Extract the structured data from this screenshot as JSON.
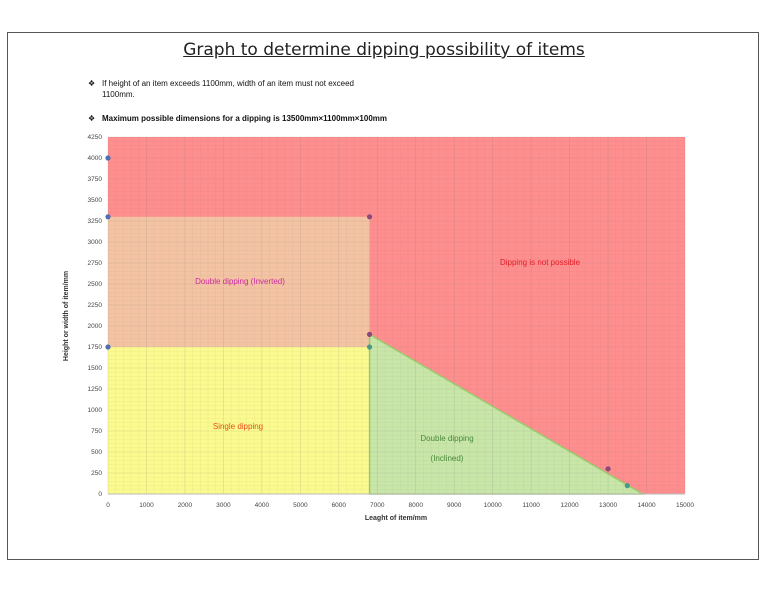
{
  "title": "Graph to determine dipping possibility of items",
  "notes": [
    {
      "bullet": "❖",
      "line1": "If height of an item exceeds 1100mm, width of an item must not exceed",
      "line2": "1100mm."
    },
    {
      "bullet": "❖",
      "line1": "Maximum possible dimensions for a dipping is 13500mm×1100mm×100mm",
      "line2": ""
    }
  ],
  "colors": {
    "not_possible": "#ff8e8e",
    "inverted": "#f4c3a3",
    "single": "#fbfa8e",
    "inclined": "#c8e6a8",
    "inclined_edge": "#9ccc6e",
    "point_blue": "#4f6fb3",
    "point_purple": "#8a4a7a",
    "point_teal": "#4a9a8a",
    "label_inverted": "#cc2ba0",
    "label_not_possible": "#e0202a",
    "label_single": "#e8501a",
    "label_inclined": "#4a8a3a"
  },
  "chart_data": {
    "type": "area",
    "title": "Graph to determine dipping possibility of items",
    "xlabel": "Leaght of item/mm",
    "ylabel": "Height or width of item/mm",
    "xlim": [
      0,
      15000
    ],
    "ylim": [
      0,
      4250
    ],
    "x_ticks": [
      0,
      1000,
      2000,
      3000,
      4000,
      5000,
      6000,
      7000,
      8000,
      9000,
      10000,
      11000,
      12000,
      13000,
      14000,
      15000
    ],
    "y_ticks": [
      0,
      250,
      500,
      750,
      1000,
      1250,
      1500,
      1750,
      2000,
      2250,
      2500,
      2750,
      3000,
      3250,
      3500,
      3750,
      4000,
      4250
    ],
    "grid": true,
    "regions": [
      {
        "name": "Dipping is not possible",
        "polygon": [
          [
            0,
            0
          ],
          [
            15000,
            0
          ],
          [
            15000,
            4250
          ],
          [
            0,
            4250
          ]
        ]
      },
      {
        "name": "Double dipping (Inverted)",
        "polygon": [
          [
            0,
            1750
          ],
          [
            6800,
            1750
          ],
          [
            6800,
            3300
          ],
          [
            0,
            3300
          ]
        ]
      },
      {
        "name": "Single dipping",
        "polygon": [
          [
            0,
            0
          ],
          [
            6800,
            0
          ],
          [
            6800,
            1750
          ],
          [
            0,
            1750
          ]
        ]
      },
      {
        "name": "Double dipping (Inclined)",
        "polygon": [
          [
            6800,
            0
          ],
          [
            6800,
            1900
          ],
          [
            13900,
            0
          ]
        ]
      }
    ],
    "points": [
      {
        "x": 0,
        "y": 4000
      },
      {
        "x": 0,
        "y": 3300
      },
      {
        "x": 0,
        "y": 1750
      },
      {
        "x": 6800,
        "y": 3300
      },
      {
        "x": 6800,
        "y": 1900
      },
      {
        "x": 6800,
        "y": 1750
      },
      {
        "x": 13000,
        "y": 300
      },
      {
        "x": 13500,
        "y": 100
      }
    ],
    "annotations": [
      {
        "text": "Double dipping (Inverted)",
        "x": 3400,
        "y": 2500
      },
      {
        "text": "Dipping is not possible",
        "x": 10800,
        "y": 2650
      },
      {
        "text": "Single dipping",
        "x": 3400,
        "y": 750
      },
      {
        "text": "Double dipping",
        "x": 8800,
        "y": 650
      },
      {
        "text": "(Inclined)",
        "x": 8800,
        "y": 400
      }
    ]
  },
  "labels": {
    "inverted": "Double dipping (Inverted)",
    "not_possible": "Dipping is not possible",
    "single": "Single dipping",
    "inclined_1": "Double dipping",
    "inclined_2": "(Inclined)"
  }
}
